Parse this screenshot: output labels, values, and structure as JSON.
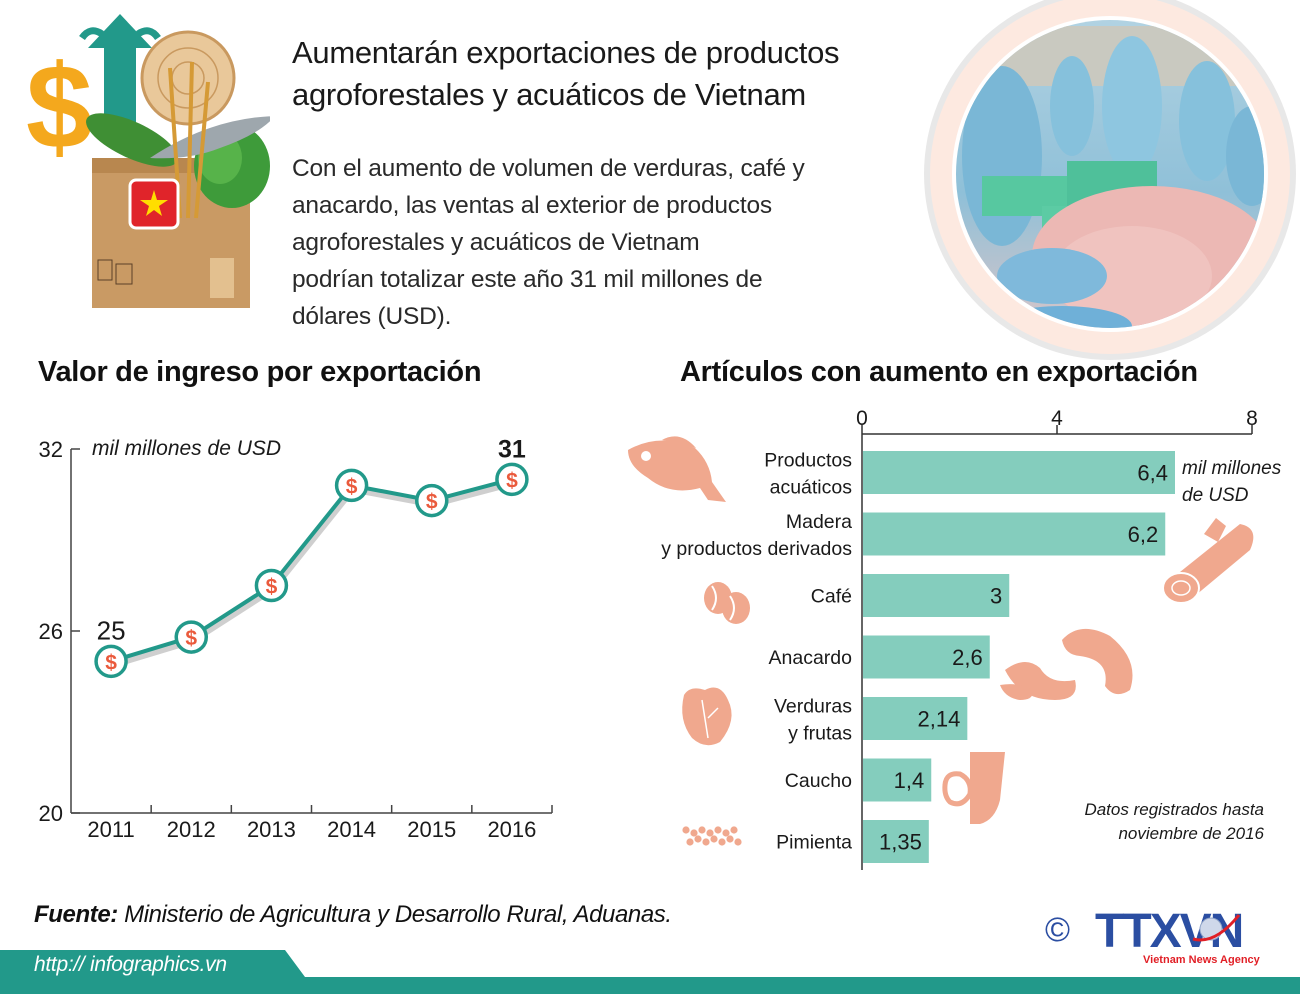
{
  "header": {
    "title": "Aumentarán exportaciones de productos agroforestales y acuáticos de Vietnam",
    "title_lines": [
      "Aumentarán exportaciones de productos",
      "agroforestales y acuáticos de Vietnam"
    ],
    "lead_lines": [
      "Con el aumento de volumen de verduras, café y",
      "anacardo, las ventas al exterior de productos",
      "agroforestales y acuáticos de Vietnam",
      "podrían totalizar este año 31 mil millones de",
      "dólares (USD)."
    ],
    "illustration_icon": "export-box-illustration-icon",
    "photo_icon": "fish-processing-photo-icon"
  },
  "colors": {
    "teal": "#22998a",
    "teal_dark": "#1e8f80",
    "bar": "#84cdbd",
    "icon_salmon": "#f0a88e",
    "dollar_red": "#ea5a3c",
    "text": "#1a1a1a",
    "photo_ring": "#fde9e0",
    "photo_ring_outer": "#e6e6e6"
  },
  "chart_data": [
    {
      "type": "line",
      "title": "Valor de ingreso por exportación",
      "ylabel": "mil millones de USD",
      "xlabel": "",
      "categories": [
        "2011",
        "2012",
        "2013",
        "2014",
        "2015",
        "2016"
      ],
      "values": [
        25,
        25.8,
        27.5,
        30.8,
        30.3,
        31
      ],
      "labeled_points": [
        {
          "index": 0,
          "label": "25"
        },
        {
          "index": 5,
          "label": "31"
        }
      ],
      "yticks": [
        20,
        26,
        32
      ],
      "ylim": [
        20,
        32
      ],
      "grid": false,
      "marker": "dollar-coin"
    },
    {
      "type": "bar",
      "orientation": "horizontal",
      "title": "Artículos con aumento en exportación",
      "unit_label": [
        "mil millones",
        "de USD"
      ],
      "categories": [
        [
          "Productos",
          "acuáticos"
        ],
        [
          "Madera",
          "y productos derivados"
        ],
        [
          "Café"
        ],
        [
          "Anacardo"
        ],
        [
          "Verduras",
          "y frutas"
        ],
        [
          "Caucho"
        ],
        [
          "Pimienta"
        ]
      ],
      "category_names": [
        "Productos acuáticos",
        "Madera y productos derivados",
        "Café",
        "Anacardo",
        "Verduras y frutas",
        "Caucho",
        "Pimienta"
      ],
      "values": [
        6.4,
        6.2,
        3,
        2.6,
        2.14,
        1.4,
        1.35
      ],
      "value_labels": [
        "6,4",
        "6,2",
        "3",
        "2,6",
        "2,14",
        "1,4",
        "1,35"
      ],
      "icons": [
        "fish-icon",
        "log-icon",
        "coffee-bean-icon",
        "cashew-icon",
        "lettuce-icon",
        "rubber-tree-icon",
        "pepper-icon"
      ],
      "xticks": [
        0,
        4,
        8
      ],
      "xlim": [
        0,
        8
      ],
      "grid": false,
      "note": [
        "Datos registrados hasta",
        "noviembre de 2016"
      ]
    }
  ],
  "footer": {
    "source_label": "Fuente:",
    "source_text": " Ministerio de Agricultura y Desarrollo Rural, Aduanas.",
    "url": "http:// infographics.vn",
    "copyright": "©",
    "logo_text": "TTXVN",
    "logo_subtitle": "Vietnam News Agency"
  }
}
